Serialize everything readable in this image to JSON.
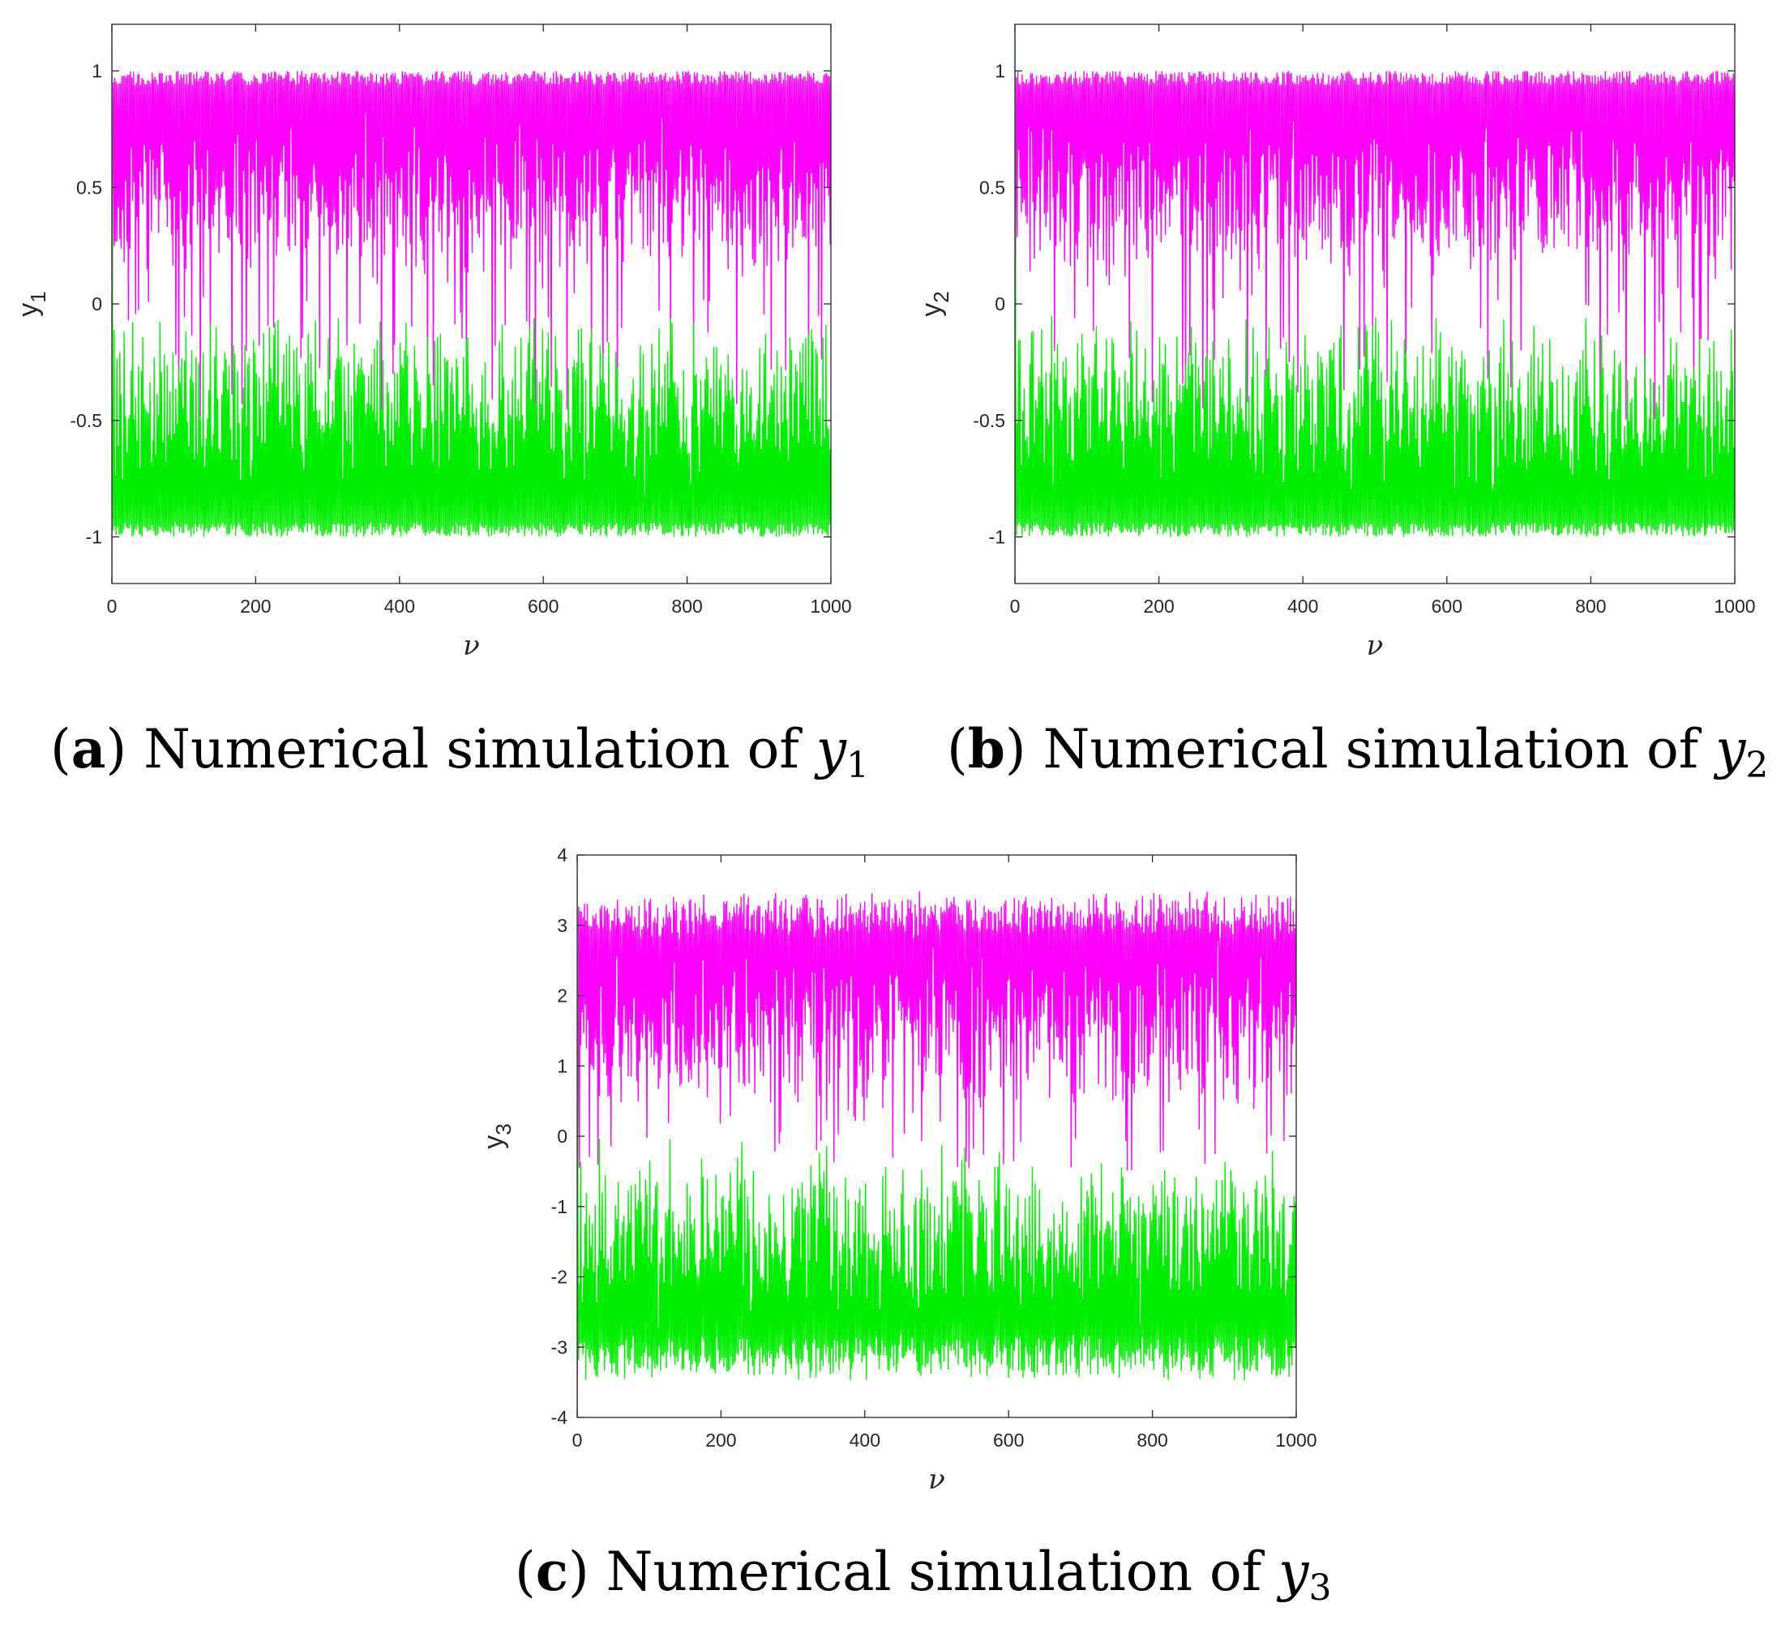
{
  "colors": {
    "series_pos": "#ff00ff",
    "series_neg": "#00ee00",
    "axis": "#262626"
  },
  "chart_data": [
    {
      "type": "line",
      "panel": "a",
      "caption": {
        "open": "(",
        "letter": "a",
        "close": ")",
        "text": " Numerical simulation of ",
        "var": "y",
        "sub": "1"
      },
      "ylabel": {
        "base": "y",
        "sub": "1"
      },
      "xlabel": "ν",
      "xlim": [
        0,
        1000
      ],
      "ylim": [
        -1.2,
        1.2
      ],
      "xticks": [
        0,
        200,
        400,
        600,
        800,
        1000
      ],
      "xtick_labels": [
        "0",
        "200",
        "400",
        "600",
        "800",
        "1000"
      ],
      "yticks": [
        -1,
        -0.5,
        0,
        0.5,
        1
      ],
      "ytick_labels": [
        "-1",
        "-0.5",
        "0",
        "0.5",
        "1"
      ],
      "series": [
        {
          "color": "#ff00ff",
          "x_range": [
            0,
            1000
          ],
          "initial": -1.2,
          "envelope_low": [
            0.1,
            0.3
          ],
          "envelope_high": 1.0,
          "deep_dips_to": -0.5
        },
        {
          "color": "#00ee00",
          "x_range": [
            0,
            1000
          ],
          "initial": 1.2,
          "envelope_low": -1.0,
          "envelope_high": [
            -0.3,
            -0.05
          ],
          "spikes_to": -0.05
        }
      ],
      "grid": false
    },
    {
      "type": "line",
      "panel": "b",
      "caption": {
        "open": "(",
        "letter": "b",
        "close": ")",
        "text": " Numerical simulation of ",
        "var": "y",
        "sub": "2"
      },
      "ylabel": {
        "base": "y",
        "sub": "2"
      },
      "xlabel": "ν",
      "xlim": [
        0,
        1000
      ],
      "ylim": [
        -1.2,
        1.2
      ],
      "xticks": [
        0,
        200,
        400,
        600,
        800,
        1000
      ],
      "xtick_labels": [
        "0",
        "200",
        "400",
        "600",
        "800",
        "1000"
      ],
      "yticks": [
        -1,
        -0.5,
        0,
        0.5,
        1
      ],
      "ytick_labels": [
        "-1",
        "-0.5",
        "0",
        "0.5",
        "1"
      ],
      "series": [
        {
          "color": "#ff00ff",
          "x_range": [
            0,
            1000
          ],
          "initial": -1.2,
          "envelope_low": [
            0.1,
            0.3
          ],
          "envelope_high": 1.0,
          "deep_dips_to": -0.5
        },
        {
          "color": "#00ee00",
          "x_range": [
            0,
            1000
          ],
          "initial": 1.2,
          "envelope_low": -1.0,
          "envelope_high": [
            -0.3,
            -0.05
          ],
          "spikes_to": -0.05
        }
      ],
      "grid": false
    },
    {
      "type": "line",
      "panel": "c",
      "caption": {
        "open": "(",
        "letter": "c",
        "close": ")",
        "text": " Numerical simulation of ",
        "var": "y",
        "sub": "3"
      },
      "ylabel": {
        "base": "y",
        "sub": "3"
      },
      "xlabel": "ν",
      "xlim": [
        0,
        1000
      ],
      "ylim": [
        -4,
        4
      ],
      "xticks": [
        0,
        200,
        400,
        600,
        800,
        1000
      ],
      "xtick_labels": [
        "0",
        "200",
        "400",
        "600",
        "800",
        "1000"
      ],
      "yticks": [
        -4,
        -3,
        -2,
        -1,
        0,
        1,
        2,
        3,
        4
      ],
      "ytick_labels": [
        "-4",
        "-3",
        "-2",
        "-1",
        "0",
        "1",
        "2",
        "3",
        "4"
      ],
      "series": [
        {
          "color": "#ff00ff",
          "x_range": [
            0,
            1000
          ],
          "initial": -4,
          "envelope_low": [
            0.3,
            1.0
          ],
          "envelope_high": [
            3.0,
            3.5
          ],
          "deep_dips_to": -0.5
        },
        {
          "color": "#00ee00",
          "x_range": [
            0,
            1000
          ],
          "initial": 4,
          "envelope_low": [
            -3.5,
            -3.0
          ],
          "envelope_high": [
            -1.0,
            -0.3
          ],
          "spikes_to": 0
        }
      ],
      "grid": false
    }
  ]
}
